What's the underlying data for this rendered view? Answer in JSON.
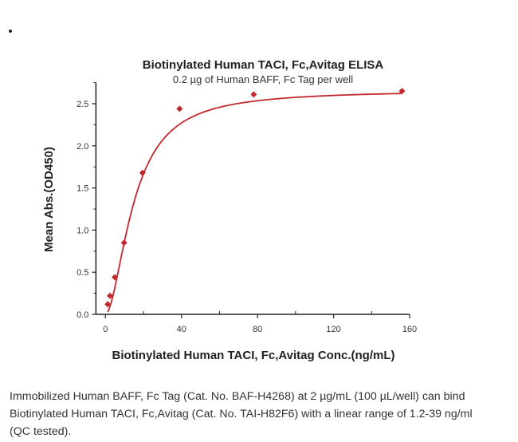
{
  "chart_data": {
    "type": "scatter",
    "title": "Biotinylated Human TACI, Fc,Avitag ELISA",
    "subtitle": "0.2 µg of Human BAFF, Fc Tag per well",
    "xlabel": "Biotinylated Human TACI, Fc,Avitag Conc.(ng/mL)",
    "ylabel": "Mean Abs.(OD450)",
    "xlim": [
      -5,
      160
    ],
    "ylim": [
      0,
      2.75
    ],
    "xticks": [
      "0",
      "40",
      "80",
      "120",
      "160"
    ],
    "yticks": [
      "0.0",
      "0.5",
      "1.0",
      "1.5",
      "2.0",
      "2.5"
    ],
    "grid": false,
    "color": "#c0282d",
    "marker": "diamond",
    "fit_line": true,
    "x": [
      1.2,
      2.4,
      4.9,
      9.8,
      19.5,
      39,
      78,
      156
    ],
    "y": [
      0.12,
      0.22,
      0.44,
      0.85,
      1.68,
      2.44,
      2.61,
      2.65
    ]
  },
  "caption": {
    "lines": [
      "Immobilized Human BAFF, Fc Tag (Cat. No. BAF-H4268) at 2 µg/mL (100 µL/well) can bind",
      "Biotinylated Human TACI, Fc,Avitag (Cat. No. TAI-H82F6) with a linear range of 1.2-39 ng/ml",
      "(QC tested)."
    ]
  }
}
